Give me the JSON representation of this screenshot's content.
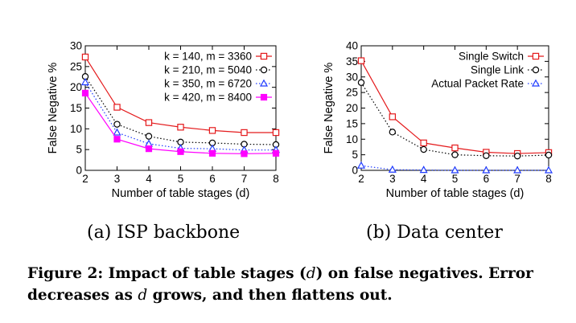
{
  "colors": {
    "red": "#e41a1c",
    "black": "#000000",
    "blue": "#1f3bff",
    "magenta": "#ff00ff"
  },
  "subcaptions": {
    "a": "(a) ISP backbone",
    "b": "(b) Data center"
  },
  "caption": {
    "label": "Figure 2: Impact of table stages (",
    "var1": "d",
    "mid": ") on false negatives. Error decreases as ",
    "var2": "d",
    "end": " grows, and then flattens out."
  },
  "chart_data": [
    {
      "type": "line",
      "title": "(a) ISP backbone",
      "xlabel": "Number of table stages (d)",
      "ylabel": "False Negative %",
      "xlim": [
        2,
        8
      ],
      "ylim": [
        0,
        30
      ],
      "xticks": [
        2,
        3,
        4,
        5,
        6,
        7,
        8
      ],
      "yticks": [
        0,
        5,
        10,
        15,
        20,
        25,
        30
      ],
      "legend_position": "top-right",
      "x": [
        2,
        3,
        4,
        5,
        6,
        7,
        8
      ],
      "series": [
        {
          "name": "k = 140, m = 3360",
          "color": "#e41a1c",
          "marker": "square-open",
          "dash": "solid",
          "values": [
            27.3,
            15.2,
            11.5,
            10.4,
            9.6,
            9.1,
            9.1
          ]
        },
        {
          "name": "k = 210, m = 5040",
          "color": "#000000",
          "marker": "circle-open",
          "dash": "dotted",
          "values": [
            22.6,
            11.1,
            8.2,
            6.8,
            6.6,
            6.3,
            6.2
          ]
        },
        {
          "name": "k = 350, m = 6720",
          "color": "#1f3bff",
          "marker": "triangle-open",
          "dash": "dotted",
          "values": [
            21.2,
            9.1,
            6.4,
            5.3,
            5.2,
            4.9,
            4.9
          ]
        },
        {
          "name": "k = 420, m = 8400",
          "color": "#ff00ff",
          "marker": "square-filled",
          "dash": "solid",
          "values": [
            18.6,
            7.5,
            5.2,
            4.5,
            4.1,
            4.0,
            4.1
          ]
        }
      ]
    },
    {
      "type": "line",
      "title": "(b) Data center",
      "xlabel": "Number of table stages (d)",
      "ylabel": "False Negative %",
      "xlim": [
        2,
        8
      ],
      "ylim": [
        0,
        40
      ],
      "xticks": [
        2,
        3,
        4,
        5,
        6,
        7,
        8
      ],
      "yticks": [
        0,
        5,
        10,
        15,
        20,
        25,
        30,
        35,
        40
      ],
      "legend_position": "top-right",
      "x": [
        2,
        3,
        4,
        5,
        6,
        7,
        8
      ],
      "series": [
        {
          "name": "Single Switch",
          "color": "#e41a1c",
          "marker": "square-open",
          "dash": "solid",
          "values": [
            35.2,
            17.2,
            8.8,
            7.2,
            5.8,
            5.4,
            5.7
          ]
        },
        {
          "name": "Single Link",
          "color": "#000000",
          "marker": "circle-open",
          "dash": "dotted",
          "values": [
            28.2,
            12.3,
            6.7,
            5.0,
            4.7,
            4.6,
            4.9
          ]
        },
        {
          "name": "Actual Packet Rate",
          "color": "#1f3bff",
          "marker": "triangle-open",
          "dash": "dotted",
          "values": [
            1.5,
            0.2,
            0.1,
            0.0,
            0.0,
            0.0,
            0.0
          ]
        }
      ]
    }
  ]
}
